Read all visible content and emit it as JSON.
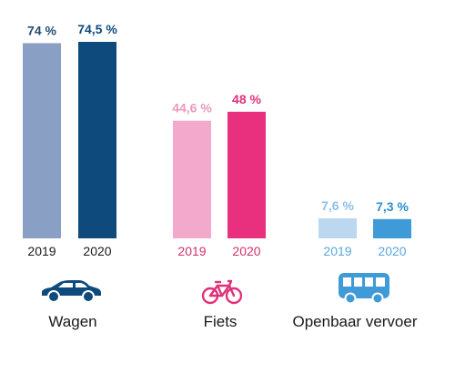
{
  "chart_data": {
    "type": "bar",
    "categories": [
      "Wagen",
      "Fiets",
      "Openbaar vervoer"
    ],
    "years": [
      "2019",
      "2020"
    ],
    "groups": [
      {
        "label": "Wagen",
        "icon": "car-icon",
        "colors": [
          "#8a9fc4",
          "#0e4a7c"
        ],
        "labelColors": [
          "#1f4e79",
          "#0e4a7c"
        ],
        "values": [
          74,
          74.5
        ],
        "display": [
          "74 %",
          "74,5 %"
        ]
      },
      {
        "label": "Fiets",
        "icon": "bicycle-icon",
        "colors": [
          "#f3a9cb",
          "#e8307f"
        ],
        "labelColors": [
          "#e89abf",
          "#e0307a"
        ],
        "values": [
          44.6,
          48
        ],
        "display": [
          "44,6 %",
          "48 %"
        ]
      },
      {
        "label": "Openbaar vervoer",
        "icon": "bus-icon",
        "colors": [
          "#bcd8f0",
          "#3f9bd8"
        ],
        "labelColors": [
          "#8ec0e6",
          "#2f8dcf"
        ],
        "values": [
          7.6,
          7.3
        ],
        "display": [
          "7,6 %",
          "7,3 %"
        ]
      }
    ],
    "ylim": [
      0,
      74.5
    ]
  }
}
